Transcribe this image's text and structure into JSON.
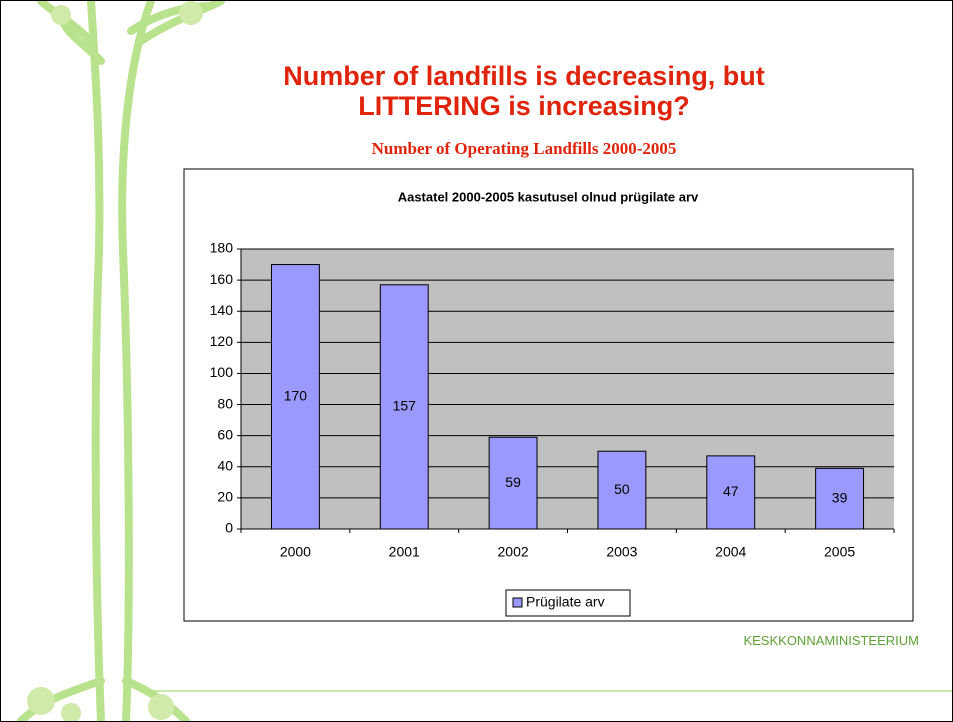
{
  "slide": {
    "title": "Number of landfills is decreasing, but LITTERING is increasing?",
    "subtitle": "Number of Operating Landfills 2000-2005",
    "footer": "KESKKONNAMINISTEERIUM"
  },
  "chart_data": {
    "type": "bar",
    "title": "Aastatel 2000-2005 kasutusel olnud prügilate arv",
    "categories": [
      "2000",
      "2001",
      "2002",
      "2003",
      "2004",
      "2005"
    ],
    "series": [
      {
        "name": "Prügilate arv",
        "color": "#9999ff",
        "values": [
          170,
          157,
          59,
          50,
          47,
          39
        ]
      }
    ],
    "ylim": [
      0,
      180
    ],
    "yticks": [
      0,
      20,
      40,
      60,
      80,
      100,
      120,
      140,
      160,
      180
    ],
    "grid": true,
    "legend": "bottom"
  }
}
